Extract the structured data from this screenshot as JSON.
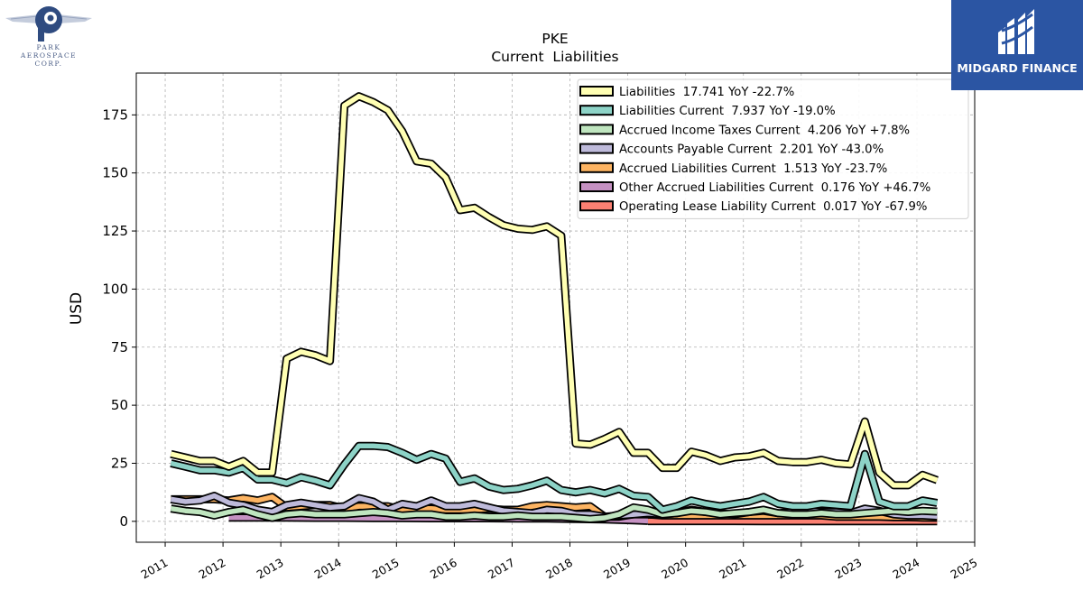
{
  "brand": {
    "park_line1": "PARK",
    "park_line2": "AEROSPACE",
    "park_line3": "CORP.",
    "midgard_name": "MIDGARD FINANCE",
    "midgard_color": "#2b55a3",
    "park_color": "#2f4b80"
  },
  "chart_data": {
    "type": "area",
    "title": "PKE",
    "subtitle": "Current  Liabilities",
    "xlabel": "",
    "ylabel": "USD",
    "xlim": [
      2010.5,
      2025.0
    ],
    "ylim": [
      -9,
      193
    ],
    "x_ticks": [
      "2011",
      "2012",
      "2013",
      "2014",
      "2015",
      "2016",
      "2017",
      "2018",
      "2019",
      "2020",
      "2021",
      "2022",
      "2023",
      "2024",
      "2025"
    ],
    "y_ticks": [
      "0",
      "25",
      "50",
      "75",
      "100",
      "125",
      "150",
      "175"
    ],
    "grid": true,
    "legend_position": "top-right",
    "series": [
      {
        "name": "Liabilities",
        "legend": "Liabilities  17.741 YoY -22.7%",
        "color": "#ffffb3",
        "x": [
          2011.1,
          2011.35,
          2011.6,
          2011.85,
          2012.1,
          2012.35,
          2012.6,
          2012.85,
          2013.1,
          2013.35,
          2013.6,
          2013.85,
          2014.1,
          2014.35,
          2014.6,
          2014.85,
          2015.1,
          2015.35,
          2015.6,
          2015.85,
          2016.1,
          2016.35,
          2016.6,
          2016.85,
          2017.1,
          2017.35,
          2017.6,
          2017.85,
          2018.1,
          2018.35,
          2018.6,
          2018.85,
          2019.1,
          2019.35,
          2019.6,
          2019.85,
          2020.1,
          2020.35,
          2020.6,
          2020.85,
          2021.1,
          2021.35,
          2021.6,
          2021.85,
          2022.1,
          2022.35,
          2022.6,
          2022.85,
          2023.1,
          2023.35,
          2023.6,
          2023.85,
          2024.1,
          2024.35
        ],
        "values": [
          29,
          27.5,
          26,
          26,
          23.5,
          26,
          21,
          21,
          70,
          73,
          71.5,
          69,
          179,
          183,
          180.5,
          177,
          168,
          155,
          154,
          148,
          134,
          135,
          131,
          127.5,
          126,
          125.5,
          127,
          123,
          33.5,
          33,
          35.5,
          38.5,
          29.5,
          29.5,
          23,
          23,
          30,
          28.5,
          26,
          27.5,
          28,
          29.5,
          26,
          25.5,
          25.5,
          26.5,
          25,
          24.5,
          43,
          21,
          15.5,
          15.5,
          20,
          17.741
        ]
      },
      {
        "name": "Liabilities Current",
        "legend": "Liabilities Current  7.937 YoY -19.0%",
        "color": "#8dd3c7",
        "x": [
          2011.1,
          2011.35,
          2011.6,
          2011.85,
          2012.1,
          2012.35,
          2012.6,
          2012.85,
          2013.1,
          2013.35,
          2013.6,
          2013.85,
          2014.1,
          2014.35,
          2014.6,
          2014.85,
          2015.1,
          2015.35,
          2015.6,
          2015.85,
          2016.1,
          2016.35,
          2016.6,
          2016.85,
          2017.1,
          2017.35,
          2017.6,
          2017.85,
          2018.1,
          2018.35,
          2018.6,
          2018.85,
          2019.1,
          2019.35,
          2019.6,
          2019.85,
          2020.1,
          2020.35,
          2020.6,
          2020.85,
          2021.1,
          2021.35,
          2021.6,
          2021.85,
          2022.1,
          2022.35,
          2022.6,
          2022.85,
          2023.1,
          2023.35,
          2023.6,
          2023.85,
          2024.1,
          2024.35
        ],
        "values": [
          25,
          23.5,
          22,
          22,
          21,
          23,
          18,
          18,
          16.5,
          19,
          17.5,
          15.5,
          24.5,
          32.5,
          32.5,
          32,
          29.5,
          26.5,
          29,
          27,
          17,
          18.5,
          15,
          13.5,
          14,
          15.5,
          17.5,
          13.5,
          12.5,
          13.5,
          12,
          14,
          11,
          10.5,
          5,
          6.5,
          9,
          7.5,
          6.5,
          7.5,
          8.5,
          10.5,
          7.5,
          6.5,
          6.5,
          7.5,
          7,
          6.5,
          29,
          8.5,
          6.5,
          6.5,
          9,
          7.937
        ]
      },
      {
        "name": "Accrued Income Taxes Current",
        "legend": "Accrued Income Taxes Current  4.206 YoY +7.8%",
        "color": "#bfe5bf",
        "x": [
          2011.1,
          2011.35,
          2011.6,
          2011.85,
          2012.1,
          2012.35,
          2012.6,
          2012.85,
          2013.1,
          2013.35,
          2013.6,
          2013.85,
          2014.1,
          2014.35,
          2014.6,
          2014.85,
          2015.1,
          2015.35,
          2015.6,
          2015.85,
          2016.1,
          2016.35,
          2016.6,
          2016.85,
          2017.1,
          2017.35,
          2017.6,
          2017.85,
          2018.1,
          2018.35,
          2018.6,
          2018.85,
          2019.1,
          2019.35,
          2019.6,
          2019.85,
          2020.1,
          2020.35,
          2020.6,
          2020.85,
          2021.1,
          2021.35,
          2021.6,
          2021.85,
          2022.1,
          2022.35,
          2022.6,
          2022.85,
          2023.1,
          2023.35,
          2023.6,
          2023.85,
          2024.1,
          2024.35
        ],
        "values": [
          5.5,
          4.5,
          4,
          2.5,
          4,
          5,
          3,
          1.5,
          3,
          3.5,
          3,
          3,
          3,
          3.5,
          4,
          3.5,
          2.5,
          3,
          3,
          2,
          2,
          2.5,
          2,
          2,
          2.5,
          2,
          2,
          2,
          1.5,
          1,
          1.5,
          3,
          6,
          5,
          3,
          3.5,
          4.5,
          4,
          3,
          3.5,
          4,
          5,
          3.5,
          3,
          3,
          3.5,
          3,
          3,
          3.5,
          4,
          4.5,
          4,
          4.5,
          4.206
        ]
      },
      {
        "name": "Accounts Payable Current",
        "legend": "Accounts Payable Current  2.201 YoY -43.0%",
        "color": "#bebada",
        "x": [
          2011.1,
          2011.35,
          2011.6,
          2011.85,
          2012.1,
          2012.35,
          2012.6,
          2012.85,
          2013.1,
          2013.35,
          2013.6,
          2013.85,
          2014.1,
          2014.35,
          2014.6,
          2014.85,
          2015.1,
          2015.35,
          2015.6,
          2015.85,
          2016.1,
          2016.35,
          2016.6,
          2016.85,
          2017.1,
          2017.35,
          2017.6,
          2017.85,
          2018.1,
          2018.35,
          2018.6,
          2018.85,
          2019.1,
          2019.35,
          2019.6,
          2019.85,
          2020.1,
          2020.35,
          2020.6,
          2020.85,
          2021.1,
          2021.35,
          2021.6,
          2021.85,
          2022.1,
          2022.35,
          2022.6,
          2022.85,
          2023.1,
          2023.35,
          2023.6,
          2023.85,
          2024.1,
          2024.35
        ],
        "values": [
          9.5,
          8.5,
          9,
          11,
          8,
          7,
          5,
          4,
          7,
          8,
          7,
          6,
          6.5,
          10,
          8.5,
          5,
          7.5,
          6.5,
          9,
          6.5,
          6.5,
          7.5,
          6,
          4.5,
          4,
          3.5,
          5,
          4.5,
          3,
          3,
          2,
          2.5,
          3,
          3.5,
          3,
          3.5,
          5,
          4,
          3.5,
          3,
          4,
          4.5,
          3.5,
          4,
          4.5,
          4,
          4,
          3.5,
          5.5,
          4.5,
          3,
          2.5,
          2.5,
          2.201
        ]
      },
      {
        "name": "Accrued Liabilities Current",
        "legend": "Accrued Liabilities Current  1.513 YoY -23.7%",
        "color": "#fdb462",
        "x": [
          2011.1,
          2011.35,
          2011.6,
          2011.85,
          2012.1,
          2012.35,
          2012.6,
          2012.85,
          2013.1,
          2013.35,
          2013.6,
          2013.85,
          2014.1,
          2014.35,
          2014.6,
          2014.85,
          2015.1,
          2015.35,
          2015.6,
          2015.85,
          2016.1,
          2016.35,
          2016.6,
          2016.85,
          2017.1,
          2017.35,
          2017.6,
          2017.85,
          2018.1,
          2018.35,
          2018.6,
          2018.85,
          2019.1,
          2019.35,
          2019.6,
          2019.85,
          2020.1,
          2020.35,
          2020.6,
          2020.85,
          2021.1,
          2021.35,
          2021.6,
          2021.85,
          2022.1,
          2022.35,
          2022.6,
          2022.85,
          2023.1,
          2023.35,
          2023.6,
          2023.85,
          2024.1,
          2024.35
        ],
        "values": [
          9.5,
          9.5,
          9.5,
          9.5,
          9,
          10,
          9,
          10.5,
          6,
          6.5,
          7,
          7,
          5.5,
          6.5,
          6.5,
          6.5,
          5,
          5.5,
          5.5,
          5,
          5,
          5,
          5.5,
          5,
          5,
          6.5,
          7,
          6.5,
          6,
          6.5,
          2,
          2,
          3,
          3,
          2.5,
          2.5,
          2.5,
          2.5,
          2.5,
          2.5,
          2.5,
          2.5,
          2.5,
          2.5,
          2.5,
          2.5,
          2,
          2,
          2,
          2,
          1.8,
          1.8,
          1.6,
          1.513
        ]
      },
      {
        "name": "Other Accrued Liabilities Current",
        "legend": "Other Accrued Liabilities Current  0.176 YoY +46.7%",
        "color": "#c591c2",
        "x": [
          2012.1,
          2012.6,
          2013.1,
          2013.6,
          2014.1,
          2014.6,
          2015.1,
          2015.6,
          2016.1,
          2016.6,
          2017.1,
          2017.6,
          2018.1,
          2018.6,
          2019.1,
          2019.35
        ],
        "values": [
          1.6,
          1.6,
          1.6,
          1.5,
          1.5,
          1.4,
          1.4,
          1.3,
          1.3,
          1.3,
          1.2,
          1.2,
          1.0,
          0.8,
          0.4,
          0.176
        ]
      },
      {
        "name": "Operating Lease Liability Current",
        "legend": "Operating Lease Liability Current  0.017 YoY -67.9%",
        "color": "#fb8072",
        "x": [
          2019.35,
          2019.85,
          2020.35,
          2020.85,
          2021.35,
          2021.85,
          2022.35,
          2022.85,
          2023.35,
          2023.85,
          2024.35
        ],
        "values": [
          0.1,
          0.1,
          0.09,
          0.08,
          0.07,
          0.06,
          0.05,
          0.04,
          0.03,
          0.02,
          0.017
        ]
      }
    ]
  }
}
